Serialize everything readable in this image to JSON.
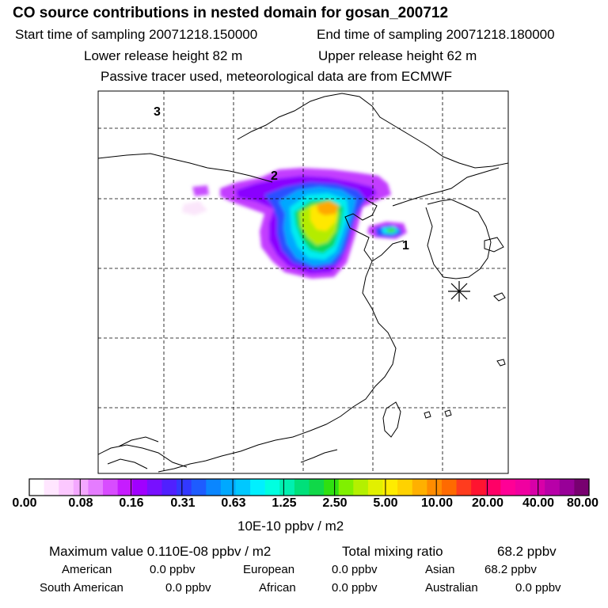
{
  "header": {
    "title": "CO  source contributions in nested domain for gosan_200712",
    "start": "Start time of sampling 20071218.150000",
    "end": "End time of sampling 20071218.180000",
    "lower": "Lower release height   82 m",
    "upper": "Upper release height   62 m",
    "note": "Passive tracer used, meteorological data are from ECMWF"
  },
  "map": {
    "markers": [
      "1",
      "2",
      "3"
    ],
    "receptor_icon": "asterisk-receptor-icon"
  },
  "colorbar": {
    "ticks": [
      "0.00",
      "0.08",
      "0.16",
      "0.31",
      "0.63",
      "1.25",
      "2.50",
      "5.00",
      "10.00",
      "20.00",
      "40.00",
      "80.00"
    ],
    "unit": "10E-10 ppbv / m2",
    "colors": [
      "#ffffff",
      "#ffe6ff",
      "#fcc8ff",
      "#f4a8ff",
      "#e57cff",
      "#d84cff",
      "#c61cff",
      "#a000ff",
      "#7810ff",
      "#5020ff",
      "#3238ff",
      "#1e5cff",
      "#0a86ff",
      "#00a8ff",
      "#00c8ff",
      "#00f0ff",
      "#00ffe0",
      "#00f0b0",
      "#00e07a",
      "#10d848",
      "#30e010",
      "#80f000",
      "#b4f000",
      "#e2f000",
      "#ffec00",
      "#ffd200",
      "#ffb000",
      "#ff8c00",
      "#ff6a00",
      "#ff3c1e",
      "#ff1430",
      "#ff0066",
      "#ff0096",
      "#f000a0",
      "#d800a8",
      "#b800a8",
      "#980098",
      "#780070"
    ]
  },
  "footer": {
    "max_label": "Maximum value  0.110E-08 ppbv / m2",
    "total_label": "Total mixing ratio",
    "total_value": "68.2 ppbv",
    "american_label": "American",
    "american_value": "0.0 ppbv",
    "european_label": "European",
    "european_value": "0.0 ppbv",
    "asian_label": "Asian",
    "asian_value": "68.2 ppbv",
    "south_american_label": "South American",
    "south_american_value": "0.0 ppbv",
    "african_label": "African",
    "african_value": "0.0 ppbv",
    "australian_label": "Australian",
    "australian_value": "0.0 ppbv"
  }
}
